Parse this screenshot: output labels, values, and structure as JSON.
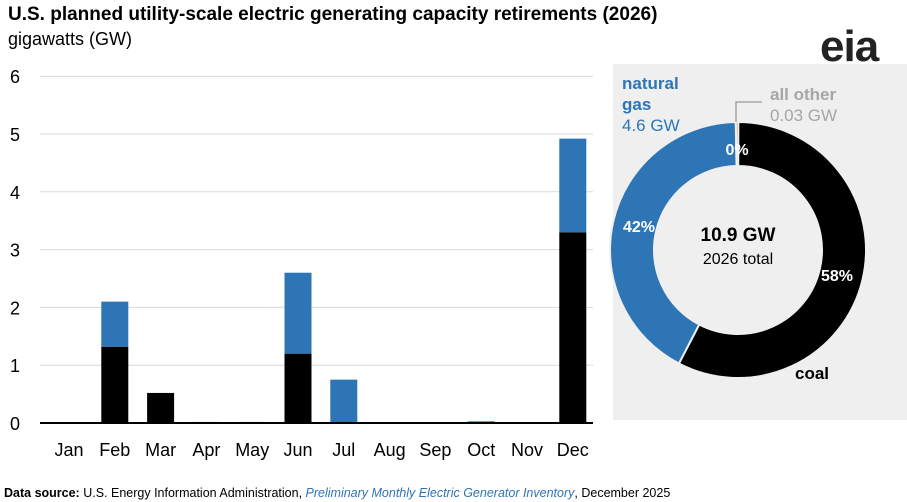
{
  "title": "U.S. planned utility-scale electric generating capacity retirements (2026)",
  "subtitle": "gigawatts (GW)",
  "logo": "eia",
  "source": {
    "label": "Data source:",
    "text1": " U.S. Energy Information Administration, ",
    "italic": "Preliminary Monthly Electric Generator Inventory",
    "text2": ", December 2025"
  },
  "colors": {
    "coal": "#000000",
    "natural_gas": "#2e75b6",
    "other": "#c8835a",
    "grid": "#d9d9d9"
  },
  "chart_data": [
    {
      "type": "bar",
      "stacked": true,
      "ylim": [
        0,
        6
      ],
      "yticks": [
        0,
        1,
        2,
        3,
        4,
        5,
        6
      ],
      "grid": true,
      "categories": [
        "Jan",
        "Feb",
        "Mar",
        "Apr",
        "May",
        "Jun",
        "Jul",
        "Aug",
        "Sep",
        "Oct",
        "Nov",
        "Dec"
      ],
      "series": [
        {
          "key": "coal",
          "values": [
            0,
            1.32,
            0.52,
            0,
            0,
            1.2,
            0,
            0,
            0,
            0,
            0,
            3.3
          ]
        },
        {
          "key": "natural_gas",
          "values": [
            0,
            0.78,
            0,
            0,
            0,
            1.4,
            0.75,
            0,
            0,
            0.03,
            0,
            1.62
          ]
        },
        {
          "key": "other",
          "values": [
            0,
            0,
            0,
            0.02,
            0.02,
            0,
            0,
            0,
            0,
            0,
            0,
            0
          ]
        }
      ]
    },
    {
      "type": "pie",
      "donut": true,
      "center_value": "10.9 GW",
      "center_label": "2026 total",
      "slices": [
        {
          "key": "coal",
          "label": "coal",
          "value": 6.3,
          "pct_label": "58%"
        },
        {
          "key": "natural_gas",
          "label": "natural gas",
          "value": 4.6,
          "value_label": "4.6 GW",
          "pct_label": "42%"
        },
        {
          "key": "other",
          "label": "all other",
          "value": 0.03,
          "value_label": "0.03 GW",
          "pct_label": "0%"
        }
      ]
    }
  ]
}
